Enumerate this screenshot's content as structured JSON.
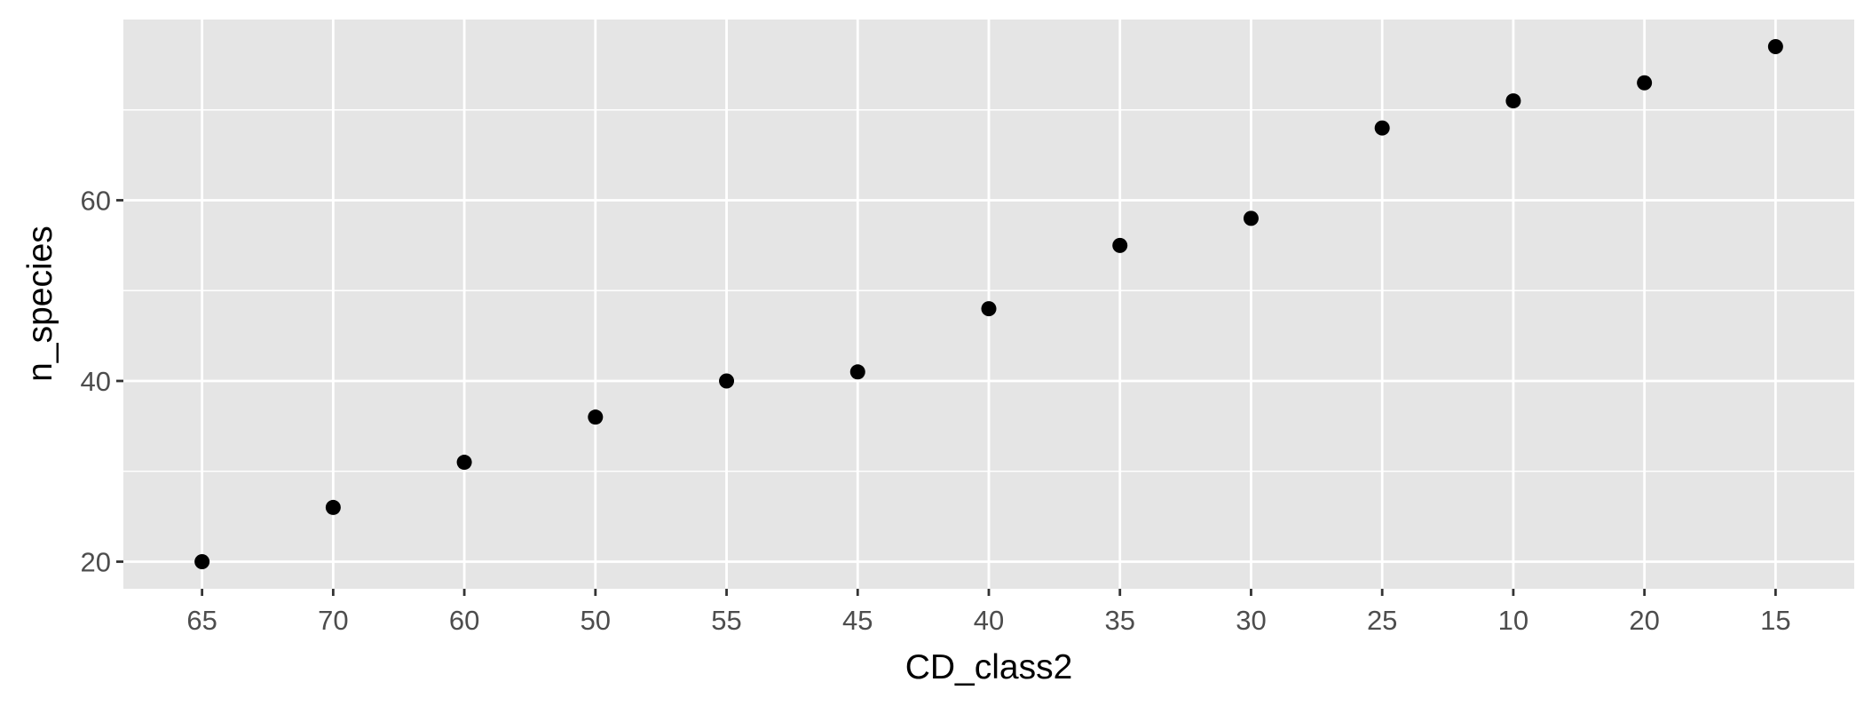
{
  "chart_data": {
    "type": "scatter",
    "title": "",
    "xlabel": "CD_class2",
    "ylabel": "n_species",
    "categories": [
      "65",
      "70",
      "60",
      "50",
      "55",
      "45",
      "40",
      "35",
      "30",
      "25",
      "10",
      "20",
      "15"
    ],
    "series": [
      {
        "values": [
          20,
          26,
          31,
          36,
          40,
          41,
          48,
          55,
          58,
          68,
          71,
          73,
          77
        ]
      }
    ],
    "ylim": [
      17,
      80
    ],
    "y_ticks": [
      20,
      40,
      60
    ],
    "grid": true,
    "legend": "none"
  },
  "colors": {
    "panel_background": "#e5e5e5",
    "grid_line": "#ffffff",
    "point": "#000000",
    "tick_text": "#4d4d4d"
  }
}
